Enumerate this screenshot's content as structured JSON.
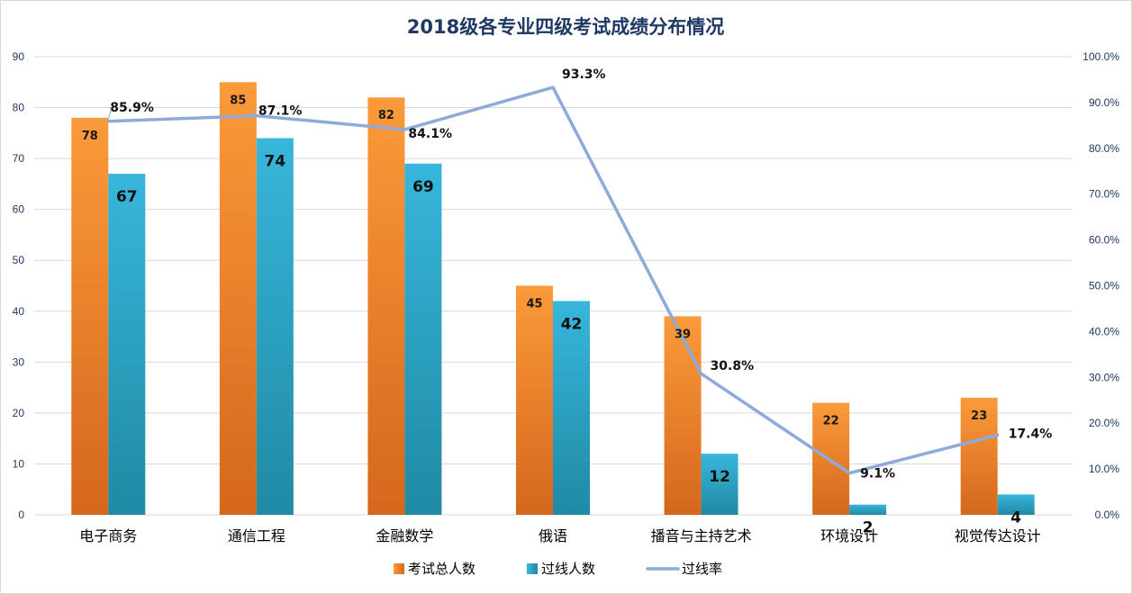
{
  "chart_data": {
    "type": "bar",
    "title": "2018级各专业四级考试成绩分布情况",
    "categories": [
      "电子商务",
      "通信工程",
      "金融数学",
      "俄语",
      "播音与主持艺术",
      "环境设计",
      "视觉传达设计"
    ],
    "series": [
      {
        "name": "考试总人数",
        "type": "bar",
        "axis": "left",
        "color": "#f28a2e",
        "values": [
          78,
          85,
          82,
          45,
          39,
          22,
          23
        ]
      },
      {
        "name": "过线人数",
        "type": "bar",
        "axis": "left",
        "color": "#2aa6c8",
        "values": [
          67,
          74,
          69,
          42,
          12,
          2,
          4
        ]
      },
      {
        "name": "过线率",
        "type": "line",
        "axis": "right",
        "color": "#8eaadb",
        "values": [
          85.9,
          87.1,
          84.1,
          93.3,
          30.8,
          9.1,
          17.4
        ],
        "labels": [
          "85.9%",
          "87.1%",
          "84.1%",
          "93.3%",
          "30.8%",
          "9.1%",
          "17.4%"
        ]
      }
    ],
    "y_left": {
      "min": 0,
      "max": 90,
      "step": 10,
      "ticks": [
        "0",
        "10",
        "20",
        "30",
        "40",
        "50",
        "60",
        "70",
        "80",
        "90"
      ]
    },
    "y_right": {
      "min": 0,
      "max": 100,
      "step": 10,
      "ticks": [
        "0.0%",
        "10.0%",
        "20.0%",
        "30.0%",
        "40.0%",
        "50.0%",
        "60.0%",
        "70.0%",
        "80.0%",
        "90.0%",
        "100.0%"
      ]
    },
    "grid": true,
    "legend": {
      "position": "bottom",
      "items": [
        "考试总人数",
        "过线人数",
        "过线率"
      ]
    }
  }
}
